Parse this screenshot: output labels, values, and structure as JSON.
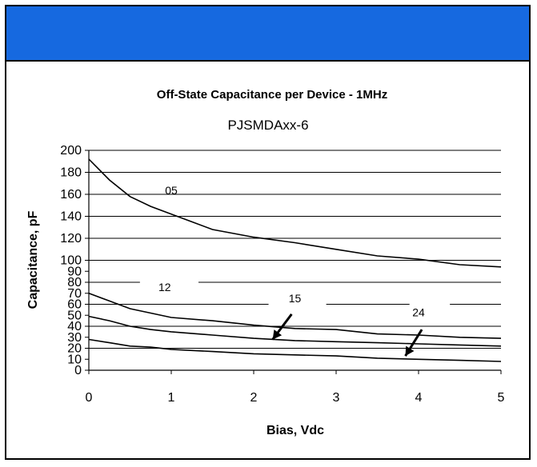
{
  "chart_data": {
    "type": "line",
    "title": "Off-State Capacitance per Device - 1MHz",
    "subtitle": "PJSMDAxx-6",
    "xlabel": "Bias, Vdc",
    "ylabel": "Capacitance, pF",
    "xlim": [
      0,
      5
    ],
    "ylim": [
      0,
      200
    ],
    "xticks": [
      "0",
      "1",
      "2",
      "3",
      "4",
      "5"
    ],
    "yticks": [
      "0",
      "10",
      "20",
      "30",
      "40",
      "50",
      "60",
      "70",
      "80",
      "90",
      "100",
      "120",
      "140",
      "160",
      "180",
      "200"
    ],
    "grid": true,
    "series": [
      {
        "name": "05",
        "x": [
          0,
          0.25,
          0.5,
          0.75,
          1,
          1.25,
          1.5,
          2,
          2.5,
          3,
          3.5,
          4,
          4.5,
          5
        ],
        "y": [
          192,
          173,
          158,
          149,
          142,
          135,
          128,
          121,
          116,
          110,
          104,
          101,
          96,
          94
        ]
      },
      {
        "name": "12",
        "x": [
          0,
          0.25,
          0.5,
          0.75,
          1,
          1.5,
          2,
          2.5,
          3,
          3.5,
          4,
          4.5,
          5
        ],
        "y": [
          70,
          63,
          56,
          52,
          48,
          45,
          41,
          38,
          37,
          33,
          32,
          30,
          29
        ]
      },
      {
        "name": "15",
        "x": [
          0,
          0.25,
          0.5,
          0.75,
          1,
          1.5,
          2,
          2.5,
          3,
          3.5,
          4,
          4.5,
          5
        ],
        "y": [
          49,
          45,
          40,
          37,
          35,
          32,
          29,
          27,
          26,
          25,
          24,
          23,
          22
        ]
      },
      {
        "name": "24",
        "x": [
          0,
          0.25,
          0.5,
          0.75,
          1,
          1.5,
          2,
          2.5,
          3,
          3.5,
          4,
          4.5,
          5
        ],
        "y": [
          28,
          25,
          22,
          21,
          19,
          17,
          15,
          14,
          13,
          11,
          10,
          9,
          8
        ]
      }
    ]
  }
}
